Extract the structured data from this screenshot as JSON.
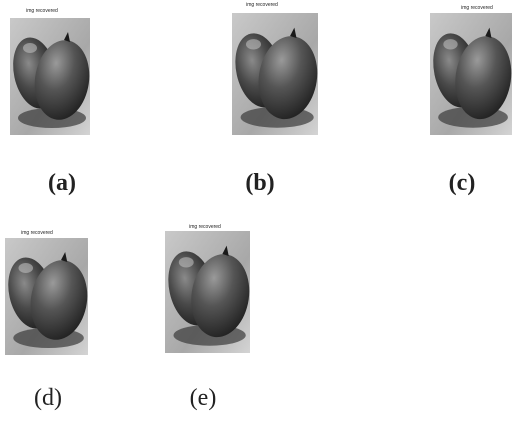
{
  "panels": [
    {
      "title": "img recovered",
      "label": "(a)"
    },
    {
      "title": "img recovered",
      "label": "(b)"
    },
    {
      "title": "img recovered",
      "label": "(c)"
    },
    {
      "title": "img recovered",
      "label": "(d)"
    },
    {
      "title": "img recovered",
      "label": "(e)"
    }
  ]
}
